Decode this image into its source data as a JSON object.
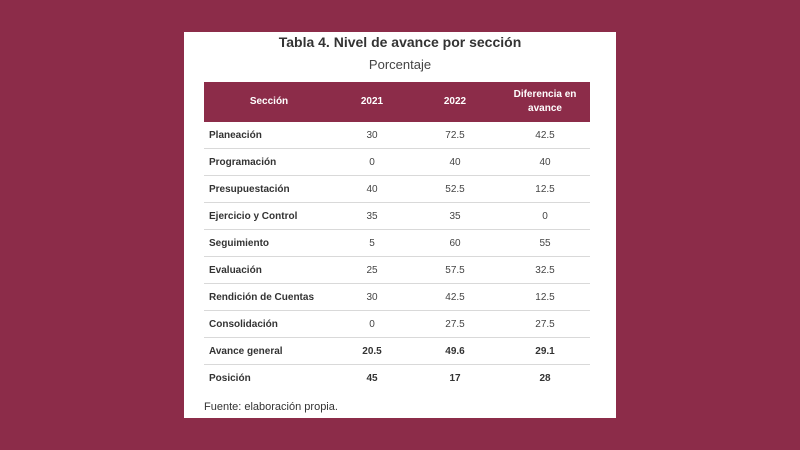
{
  "title": "Tabla 4. Nivel de avance por sección",
  "subtitle": "Porcentaje",
  "colors": {
    "background": "#8c2c49",
    "header_bg": "#8c2c49",
    "header_text": "#ffffff",
    "card": "#ffffff"
  },
  "table": {
    "headers": [
      "Sección",
      "2021",
      "2022",
      "Diferencia en avance"
    ],
    "rows": [
      {
        "seccion": "Planeación",
        "y2021": "30",
        "y2022": "72.5",
        "diferencia": "42.5"
      },
      {
        "seccion": "Programación",
        "y2021": "0",
        "y2022": "40",
        "diferencia": "40"
      },
      {
        "seccion": "Presupuestación",
        "y2021": "40",
        "y2022": "52.5",
        "diferencia": "12.5"
      },
      {
        "seccion": "Ejercicio y Control",
        "y2021": "35",
        "y2022": "35",
        "diferencia": "0"
      },
      {
        "seccion": "Seguimiento",
        "y2021": "5",
        "y2022": "60",
        "diferencia": "55"
      },
      {
        "seccion": "Evaluación",
        "y2021": "25",
        "y2022": "57.5",
        "diferencia": "32.5"
      },
      {
        "seccion": "Rendición de Cuentas",
        "y2021": "30",
        "y2022": "42.5",
        "diferencia": "12.5"
      },
      {
        "seccion": "Consolidación",
        "y2021": "0",
        "y2022": "27.5",
        "diferencia": "27.5"
      },
      {
        "seccion": "Avance general",
        "y2021": "20.5",
        "y2022": "49.6",
        "diferencia": "29.1"
      },
      {
        "seccion": "Posición",
        "y2021": "45",
        "y2022": "17",
        "diferencia": "28"
      }
    ]
  },
  "footnote": "Fuente: elaboración propia."
}
